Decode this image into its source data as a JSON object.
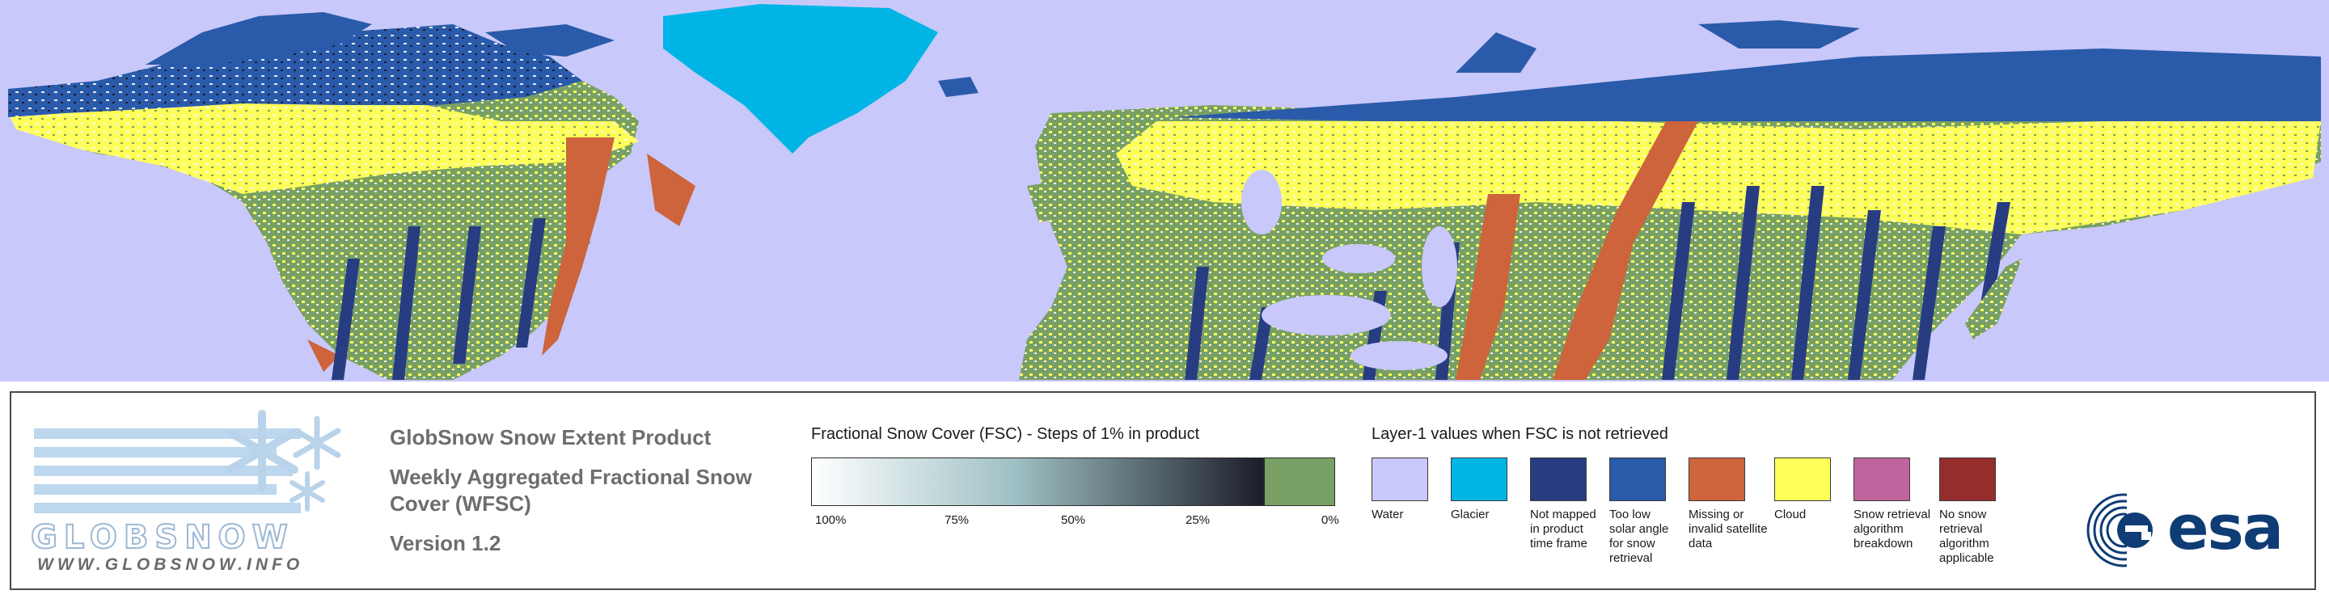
{
  "map": {
    "description_colors": {
      "water": "#c8c8fa",
      "glacier": "#00b4e6",
      "not_mapped": "#283c82",
      "too_low_solar": "#2a5aaa",
      "missing": "#cd643c",
      "cloud": "#ffff5a",
      "fsc_zero": "#78a064"
    }
  },
  "branding": {
    "logo_word": "GLOBSNOW",
    "url": "WWW.GLOBSNOW.INFO",
    "agency": "esa"
  },
  "product": {
    "title": "GlobSnow Snow Extent Product",
    "subtitle_line1": "Weekly Aggregated Fractional Snow",
    "subtitle_line2": "Cover (WFSC)",
    "version": "Version 1.2"
  },
  "fsc_scale": {
    "heading": "Fractional Snow Cover (FSC) - Steps of 1% in product",
    "ticks": [
      "100%",
      "75%",
      "50%",
      "25%",
      "0%"
    ],
    "gradient_start": "#ffffff",
    "gradient_mid": "#9ec0c4",
    "gradient_end": "#1c1c2a",
    "zero_color": "#78a064"
  },
  "layer1": {
    "heading": "Layer-1 values when FSC is not retrieved",
    "items": [
      {
        "label": "Water",
        "color": "#c8c8fa"
      },
      {
        "label": "Glacier",
        "color": "#00b4e6"
      },
      {
        "label": "Not mapped in product time frame",
        "color": "#283c82"
      },
      {
        "label": "Too low solar angle for snow retrieval",
        "color": "#2a5aaa"
      },
      {
        "label": "Missing or invalid satellite data",
        "color": "#cd643c"
      },
      {
        "label": "Cloud",
        "color": "#ffff5a"
      },
      {
        "label": "Snow retrieval algorithm breakdown",
        "color": "#c0649e"
      },
      {
        "label": "No snow retrieval algorithm applicable",
        "color": "#962d2d"
      }
    ]
  }
}
